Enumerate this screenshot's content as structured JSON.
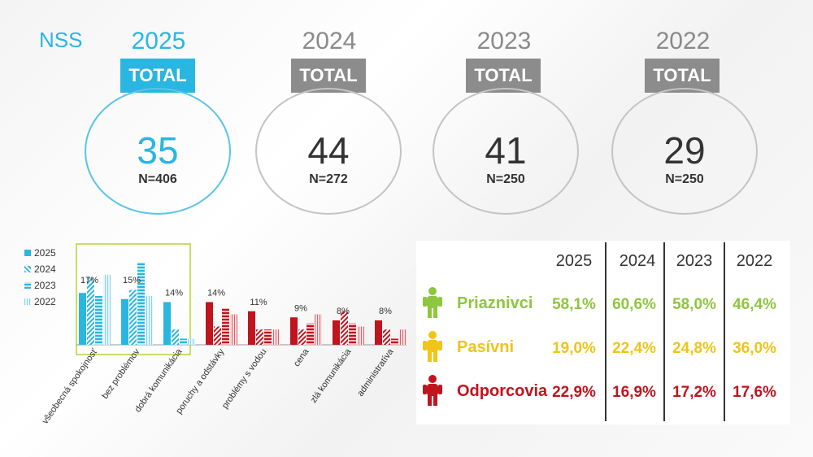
{
  "nss_label": "NSS",
  "scores": [
    {
      "year": "2025",
      "tag": "TOTAL",
      "score": "35",
      "n": "N=406"
    },
    {
      "year": "2024",
      "tag": "TOTAL",
      "score": "44",
      "n": "N=272"
    },
    {
      "year": "2023",
      "tag": "TOTAL",
      "score": "41",
      "n": "N=250"
    },
    {
      "year": "2022",
      "tag": "TOTAL",
      "score": "29",
      "n": "N=250"
    }
  ],
  "colors": {
    "accent": "#29b6e0",
    "red": "#c0141e",
    "green": "#8dc63f",
    "yellow": "#f0c419",
    "grey": "#8c8c8c"
  },
  "chart_data": {
    "type": "bar",
    "categories": [
      "všeobecná spokojnosť",
      "bez problémov",
      "dobrá komunikácia",
      "poruchy a odstávky",
      "problémy s vodou",
      "cena",
      "zlá komunikácia",
      "administratíva"
    ],
    "data_labels": [
      "17%",
      "15%",
      "14%",
      "14%",
      "11%",
      "9%",
      "8%",
      "8%"
    ],
    "series": [
      {
        "name": "2025",
        "values": [
          17,
          15,
          14,
          14,
          11,
          9,
          8,
          8
        ]
      },
      {
        "name": "2024",
        "values": [
          22,
          18,
          5,
          6,
          5,
          5,
          11,
          5
        ]
      },
      {
        "name": "2023",
        "values": [
          16,
          27,
          2,
          12,
          5,
          7,
          7,
          2
        ]
      },
      {
        "name": "2022",
        "values": [
          23,
          16,
          2,
          10,
          5,
          10,
          6,
          5
        ]
      }
    ],
    "positive_categories": 3,
    "ylim": [
      0,
      32
    ],
    "legend": "top-left",
    "highlight_box": "first three categories"
  },
  "table": {
    "headers": [
      "2025",
      "2024",
      "2023",
      "2022"
    ],
    "rows": [
      {
        "label": "Priaznivci",
        "color": "#8dc63f",
        "values": [
          "58,1%",
          "60,6%",
          "58,0%",
          "46,4%"
        ]
      },
      {
        "label": "Pasívni",
        "color": "#f0c419",
        "values": [
          "19,0%",
          "22,4%",
          "24,8%",
          "36,0%"
        ]
      },
      {
        "label": "Odporcovia",
        "color": "#c0141e",
        "values": [
          "22,9%",
          "16,9%",
          "17,2%",
          "17,6%"
        ]
      }
    ]
  }
}
